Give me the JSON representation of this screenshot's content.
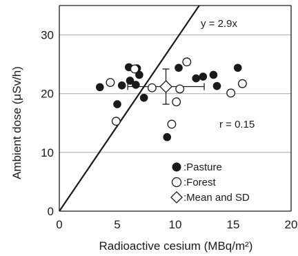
{
  "chart_data": {
    "type": "scatter",
    "xlabel": "Radioactive cesium (MBq/m²)",
    "ylabel": "Ambient dose (μSv/h)",
    "xlim": [
      0,
      20
    ],
    "ylim": [
      0,
      35
    ],
    "x_ticks": [
      "0",
      "5",
      "10",
      "15",
      "20"
    ],
    "y_ticks": [
      "0",
      "10",
      "20",
      "30"
    ],
    "grid": "horizontal",
    "legend_position": "bottom-right",
    "series": [
      {
        "name": ":Pasture",
        "marker": "filled-circle",
        "color": "#1a1a1a",
        "points": [
          {
            "x": 3.5,
            "y": 21.1
          },
          {
            "x": 5.0,
            "y": 18.2
          },
          {
            "x": 5.4,
            "y": 21.4
          },
          {
            "x": 6.0,
            "y": 24.5
          },
          {
            "x": 6.1,
            "y": 22.2
          },
          {
            "x": 6.6,
            "y": 21.5
          },
          {
            "x": 6.7,
            "y": 24.3
          },
          {
            "x": 6.9,
            "y": 23.2
          },
          {
            "x": 7.3,
            "y": 19.3
          },
          {
            "x": 9.3,
            "y": 12.6
          },
          {
            "x": 10.3,
            "y": 24.4
          },
          {
            "x": 11.8,
            "y": 22.6
          },
          {
            "x": 12.4,
            "y": 22.9
          },
          {
            "x": 13.3,
            "y": 23.2
          },
          {
            "x": 13.6,
            "y": 21.3
          },
          {
            "x": 15.4,
            "y": 24.4
          }
        ]
      },
      {
        "name": ":Forest",
        "marker": "open-circle",
        "color": "#1a1a1a",
        "points": [
          {
            "x": 4.4,
            "y": 21.9
          },
          {
            "x": 4.9,
            "y": 15.3
          },
          {
            "x": 6.5,
            "y": 24.2
          },
          {
            "x": 8.0,
            "y": 21.0
          },
          {
            "x": 9.7,
            "y": 14.8
          },
          {
            "x": 10.1,
            "y": 18.6
          },
          {
            "x": 10.4,
            "y": 20.8
          },
          {
            "x": 11.0,
            "y": 25.4
          },
          {
            "x": 14.8,
            "y": 20.1
          },
          {
            "x": 15.8,
            "y": 21.7
          }
        ]
      },
      {
        "name": ":Mean and SD",
        "marker": "open-diamond",
        "color": "#1a1a1a",
        "points": [
          {
            "x": 9.2,
            "y": 21.2,
            "x_sd": 3.3,
            "y_sd": 3.0
          }
        ]
      }
    ],
    "fit_line": {
      "slope": 2.9,
      "intercept": 0,
      "label": "y = 2.9x"
    },
    "annotation": "r = 0.15"
  }
}
